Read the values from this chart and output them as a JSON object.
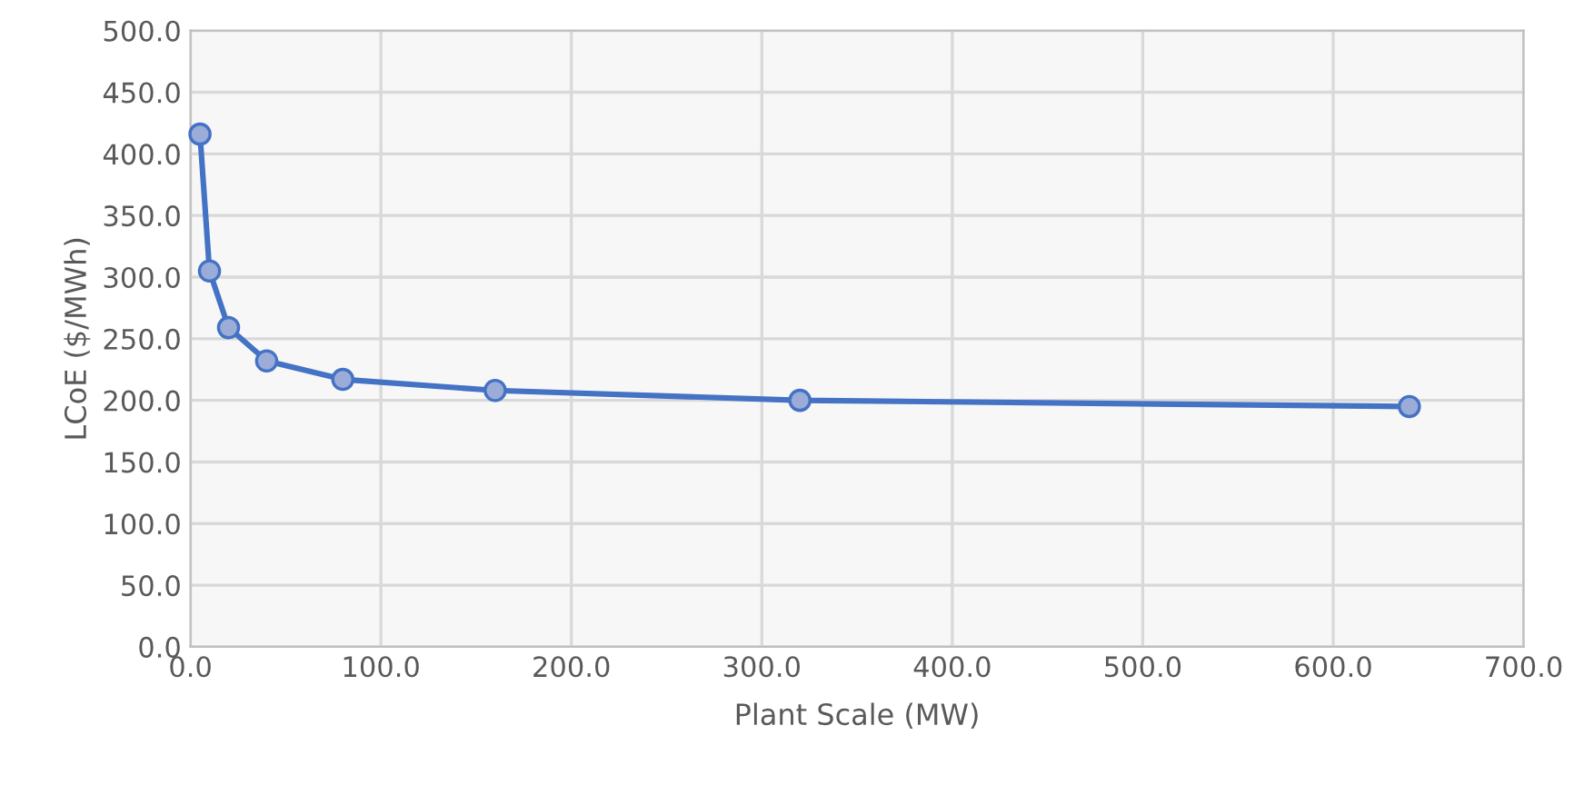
{
  "chart_data": {
    "type": "line",
    "xlabel": "Plant Scale (MW)",
    "ylabel": "LCoE ($/MWh)",
    "x": [
      5,
      10,
      20,
      40,
      80,
      160,
      320,
      640
    ],
    "series": [
      {
        "color": "#4472c4",
        "values": [
          416,
          305,
          259,
          232,
          217,
          208,
          200,
          195
        ]
      }
    ],
    "xlim": [
      0,
      700
    ],
    "xticks": [
      {
        "value": 0,
        "label": "0.0"
      },
      {
        "value": 100,
        "label": "100.0"
      },
      {
        "value": 200,
        "label": "200.0"
      },
      {
        "value": 300,
        "label": "300.0"
      },
      {
        "value": 400,
        "label": "400.0"
      },
      {
        "value": 500,
        "label": "500.0"
      },
      {
        "value": 600,
        "label": "600.0"
      },
      {
        "value": 700,
        "label": "700.0"
      }
    ],
    "ylim": [
      0,
      500
    ],
    "yticks": [
      {
        "value": 0,
        "label": "0.0"
      },
      {
        "value": 50,
        "label": "50.0"
      },
      {
        "value": 100,
        "label": "100.0"
      },
      {
        "value": 150,
        "label": "150.0"
      },
      {
        "value": 200,
        "label": "200.0"
      },
      {
        "value": 250,
        "label": "250.0"
      },
      {
        "value": 300,
        "label": "300.0"
      },
      {
        "value": 350,
        "label": "350.0"
      },
      {
        "value": 400,
        "label": "400.0"
      },
      {
        "value": 450,
        "label": "450.0"
      },
      {
        "value": 500,
        "label": "500.0"
      }
    ],
    "grid": true,
    "marker": "circle",
    "line_style": "solid"
  }
}
